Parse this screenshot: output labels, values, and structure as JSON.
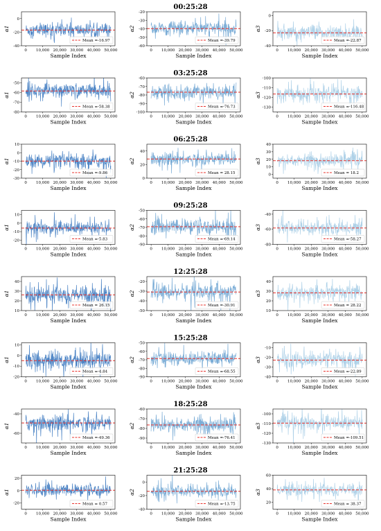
{
  "chart_data": [
    {
      "title": "00:25:28",
      "type": "line",
      "xlabel": "Sample Index",
      "xlim": [
        -2500,
        52500
      ],
      "xticks": [
        0,
        10000,
        20000,
        30000,
        40000,
        50000
      ],
      "x_tick_labels": [
        "0",
        "10,000",
        "20,000",
        "30,000",
        "40,000",
        "50,000"
      ],
      "panels": [
        {
          "ylabel": "α1",
          "ylim": [
            -40,
            10
          ],
          "yticks": [
            -40,
            -20,
            0
          ],
          "mean": -16.97,
          "legend": "Mean =-16.97",
          "color": "#4f86c6",
          "noise": 6.5
        },
        {
          "ylabel": "α2",
          "ylim": [
            -60,
            -20
          ],
          "yticks": [
            -60,
            -50,
            -40,
            -30,
            -20
          ],
          "mean": -39.79,
          "legend": "Mean =-39.79",
          "color": "#7aacd6",
          "noise": 5.5
        },
        {
          "ylabel": "α3",
          "ylim": [
            -40,
            5
          ],
          "yticks": [
            -40,
            -20,
            0
          ],
          "mean": -22.87,
          "legend": "Mean =-22.87",
          "color": "#aed1e8",
          "noise": 6
        }
      ]
    },
    {
      "title": "03:25:28",
      "type": "line",
      "xlabel": "Sample Index",
      "xlim": [
        -2500,
        52500
      ],
      "xticks": [
        0,
        10000,
        20000,
        30000,
        40000,
        50000
      ],
      "x_tick_labels": [
        "0",
        "10,000",
        "20,000",
        "30,000",
        "40,000",
        "50,000"
      ],
      "panels": [
        {
          "ylabel": "α1",
          "ylim": [
            -80,
            -45
          ],
          "yticks": [
            -80,
            -70,
            -60,
            -50
          ],
          "mean": -58.38,
          "legend": "Mean =-58.38",
          "color": "#4f86c6",
          "noise": 5
        },
        {
          "ylabel": "α2",
          "ylim": [
            -100,
            -60
          ],
          "yticks": [
            -100,
            -90,
            -80,
            -70,
            -60
          ],
          "mean": -76.73,
          "legend": "Mean =-76.73",
          "color": "#7aacd6",
          "noise": 5.5
        },
        {
          "ylabel": "α3",
          "ylim": [
            -135,
            -100
          ],
          "yticks": [
            -130,
            -120,
            -110,
            -100
          ],
          "mean": -116.48,
          "legend": "Mean =-116.48",
          "color": "#aed1e8",
          "noise": 5
        }
      ]
    },
    {
      "title": "06:25:28",
      "type": "line",
      "xlabel": "Sample Index",
      "xlim": [
        -2500,
        52500
      ],
      "xticks": [
        0,
        10000,
        20000,
        30000,
        40000,
        50000
      ],
      "x_tick_labels": [
        "0",
        "10,000",
        "20,000",
        "30,000",
        "40,000",
        "50,000"
      ],
      "panels": [
        {
          "ylabel": "α1",
          "ylim": [
            -30,
            10
          ],
          "yticks": [
            -30,
            -20,
            -10,
            0,
            10
          ],
          "mean": -9.86,
          "legend": "Mean =-9.86",
          "color": "#4f86c6",
          "noise": 5.5
        },
        {
          "ylabel": "α2",
          "ylim": [
            0,
            50
          ],
          "yticks": [
            0,
            20,
            40
          ],
          "mean": 28.15,
          "legend": "Mean = 28.15",
          "color": "#7aacd6",
          "noise": 6.5
        },
        {
          "ylabel": "α3",
          "ylim": [
            -5,
            40
          ],
          "yticks": [
            0,
            10,
            20,
            30,
            40
          ],
          "mean": 18.2,
          "legend": "Mean = 18.2",
          "color": "#aed1e8",
          "noise": 6
        }
      ]
    },
    {
      "title": "09:25:28",
      "type": "line",
      "xlabel": "Sample Index",
      "xlim": [
        -2500,
        52500
      ],
      "xticks": [
        0,
        10000,
        20000,
        30000,
        40000,
        50000
      ],
      "x_tick_labels": [
        "0",
        "10,000",
        "20,000",
        "30,000",
        "40,000",
        "50,000"
      ],
      "panels": [
        {
          "ylabel": "α1",
          "ylim": [
            -25,
            15
          ],
          "yticks": [
            -20,
            -10,
            0,
            10
          ],
          "mean": -5.83,
          "legend": "Mean =-5.83",
          "color": "#4f86c6",
          "noise": 5
        },
        {
          "ylabel": "α2",
          "ylim": [
            -90,
            -50
          ],
          "yticks": [
            -90,
            -80,
            -70,
            -60,
            -50
          ],
          "mean": -69.14,
          "legend": "Mean =-69.14",
          "color": "#7aacd6",
          "noise": 6
        },
        {
          "ylabel": "α3",
          "ylim": [
            -80,
            -35
          ],
          "yticks": [
            -80,
            -60,
            -40
          ],
          "mean": -58.27,
          "legend": "Mean =-58.27",
          "color": "#aed1e8",
          "noise": 6.5
        }
      ]
    },
    {
      "title": "12:25:28",
      "type": "line",
      "xlabel": "Sample Index",
      "xlim": [
        -2500,
        52500
      ],
      "xticks": [
        0,
        10000,
        20000,
        30000,
        40000,
        50000
      ],
      "x_tick_labels": [
        "0",
        "10,000",
        "20,000",
        "30,000",
        "40,000",
        "50,000"
      ],
      "panels": [
        {
          "ylabel": "α1",
          "ylim": [
            10,
            45
          ],
          "yticks": [
            10,
            20,
            30,
            40
          ],
          "mean": 26.15,
          "legend": "Mean = 26.15",
          "color": "#4f86c6",
          "noise": 6
        },
        {
          "ylabel": "α2",
          "ylim": [
            -50,
            -15
          ],
          "yticks": [
            -50,
            -40,
            -30,
            -20
          ],
          "mean": -30.91,
          "legend": "Mean =-30.91",
          "color": "#7aacd6",
          "noise": 5.5
        },
        {
          "ylabel": "α3",
          "ylim": [
            10,
            45
          ],
          "yticks": [
            10,
            20,
            30,
            40
          ],
          "mean": 28.22,
          "legend": "Mean = 28.22",
          "color": "#aed1e8",
          "noise": 5.5
        }
      ]
    },
    {
      "title": "15:25:28",
      "type": "line",
      "xlabel": "Sample Index",
      "xlim": [
        -2500,
        52500
      ],
      "xticks": [
        0,
        10000,
        20000,
        30000,
        40000,
        50000
      ],
      "x_tick_labels": [
        "0",
        "10,000",
        "20,000",
        "30,000",
        "40,000",
        "50,000"
      ],
      "panels": [
        {
          "ylabel": "α1",
          "ylim": [
            -20,
            12
          ],
          "yticks": [
            -20,
            -10,
            0,
            10
          ],
          "mean": -4.84,
          "legend": "Mean =-4.84",
          "color": "#4f86c6",
          "noise": 6
        },
        {
          "ylabel": "α2",
          "ylim": [
            -90,
            -50
          ],
          "yticks": [
            -90,
            -80,
            -70,
            -60,
            -50
          ],
          "mean": -68.55,
          "legend": "Mean =-68.55",
          "color": "#7aacd6",
          "noise": 5.5
        },
        {
          "ylabel": "α3",
          "ylim": [
            -40,
            -5
          ],
          "yticks": [
            -40,
            -30,
            -20,
            -10
          ],
          "mean": -22.89,
          "legend": "Mean =-22.89",
          "color": "#aed1e8",
          "noise": 5.5
        }
      ]
    },
    {
      "title": "18:25:28",
      "type": "line",
      "xlabel": "Sample Index",
      "xlim": [
        -2500,
        52500
      ],
      "xticks": [
        0,
        10000,
        20000,
        30000,
        40000,
        50000
      ],
      "x_tick_labels": [
        "0",
        "10,000",
        "20,000",
        "30,000",
        "40,000",
        "50,000"
      ],
      "panels": [
        {
          "ylabel": "α1",
          "ylim": [
            -70,
            -35
          ],
          "yticks": [
            -60,
            -40
          ],
          "mean": -49.36,
          "legend": "Mean =-49.36",
          "color": "#4f86c6",
          "noise": 5.5
        },
        {
          "ylabel": "α2",
          "ylim": [
            -95,
            -60
          ],
          "yticks": [
            -90,
            -80,
            -70,
            -60
          ],
          "mean": -76.41,
          "legend": "Mean =-76.41",
          "color": "#7aacd6",
          "noise": 5.5
        },
        {
          "ylabel": "α3",
          "ylim": [
            -130,
            -95
          ],
          "yticks": [
            -130,
            -120,
            -110,
            -100
          ],
          "mean": -109.51,
          "legend": "Mean =-109.51",
          "color": "#aed1e8",
          "noise": 5
        }
      ]
    },
    {
      "title": "21:25:28",
      "type": "line",
      "xlabel": "Sample Index",
      "xlim": [
        -2500,
        52500
      ],
      "xticks": [
        0,
        10000,
        20000,
        30000,
        40000,
        50000
      ],
      "x_tick_labels": [
        "0",
        "10,000",
        "20,000",
        "30,000",
        "40,000",
        "50,000"
      ],
      "panels": [
        {
          "ylabel": "α1",
          "ylim": [
            -30,
            25
          ],
          "yticks": [
            -20,
            0,
            20
          ],
          "mean": 0.57,
          "legend": "Mean = 0.57",
          "color": "#4f86c6",
          "noise": 6.5
        },
        {
          "ylabel": "α2",
          "ylim": [
            -40,
            10
          ],
          "yticks": [
            -40,
            -20,
            0
          ],
          "mean": -13.75,
          "legend": "Mean =-13.75",
          "color": "#7aacd6",
          "noise": 6
        },
        {
          "ylabel": "α3",
          "ylim": [
            10,
            60
          ],
          "yticks": [
            20,
            40,
            60
          ],
          "mean": 38.37,
          "legend": "Mean = 38.37",
          "color": "#aed1e8",
          "noise": 6
        }
      ]
    }
  ],
  "mean_line_color": "#e8302a"
}
